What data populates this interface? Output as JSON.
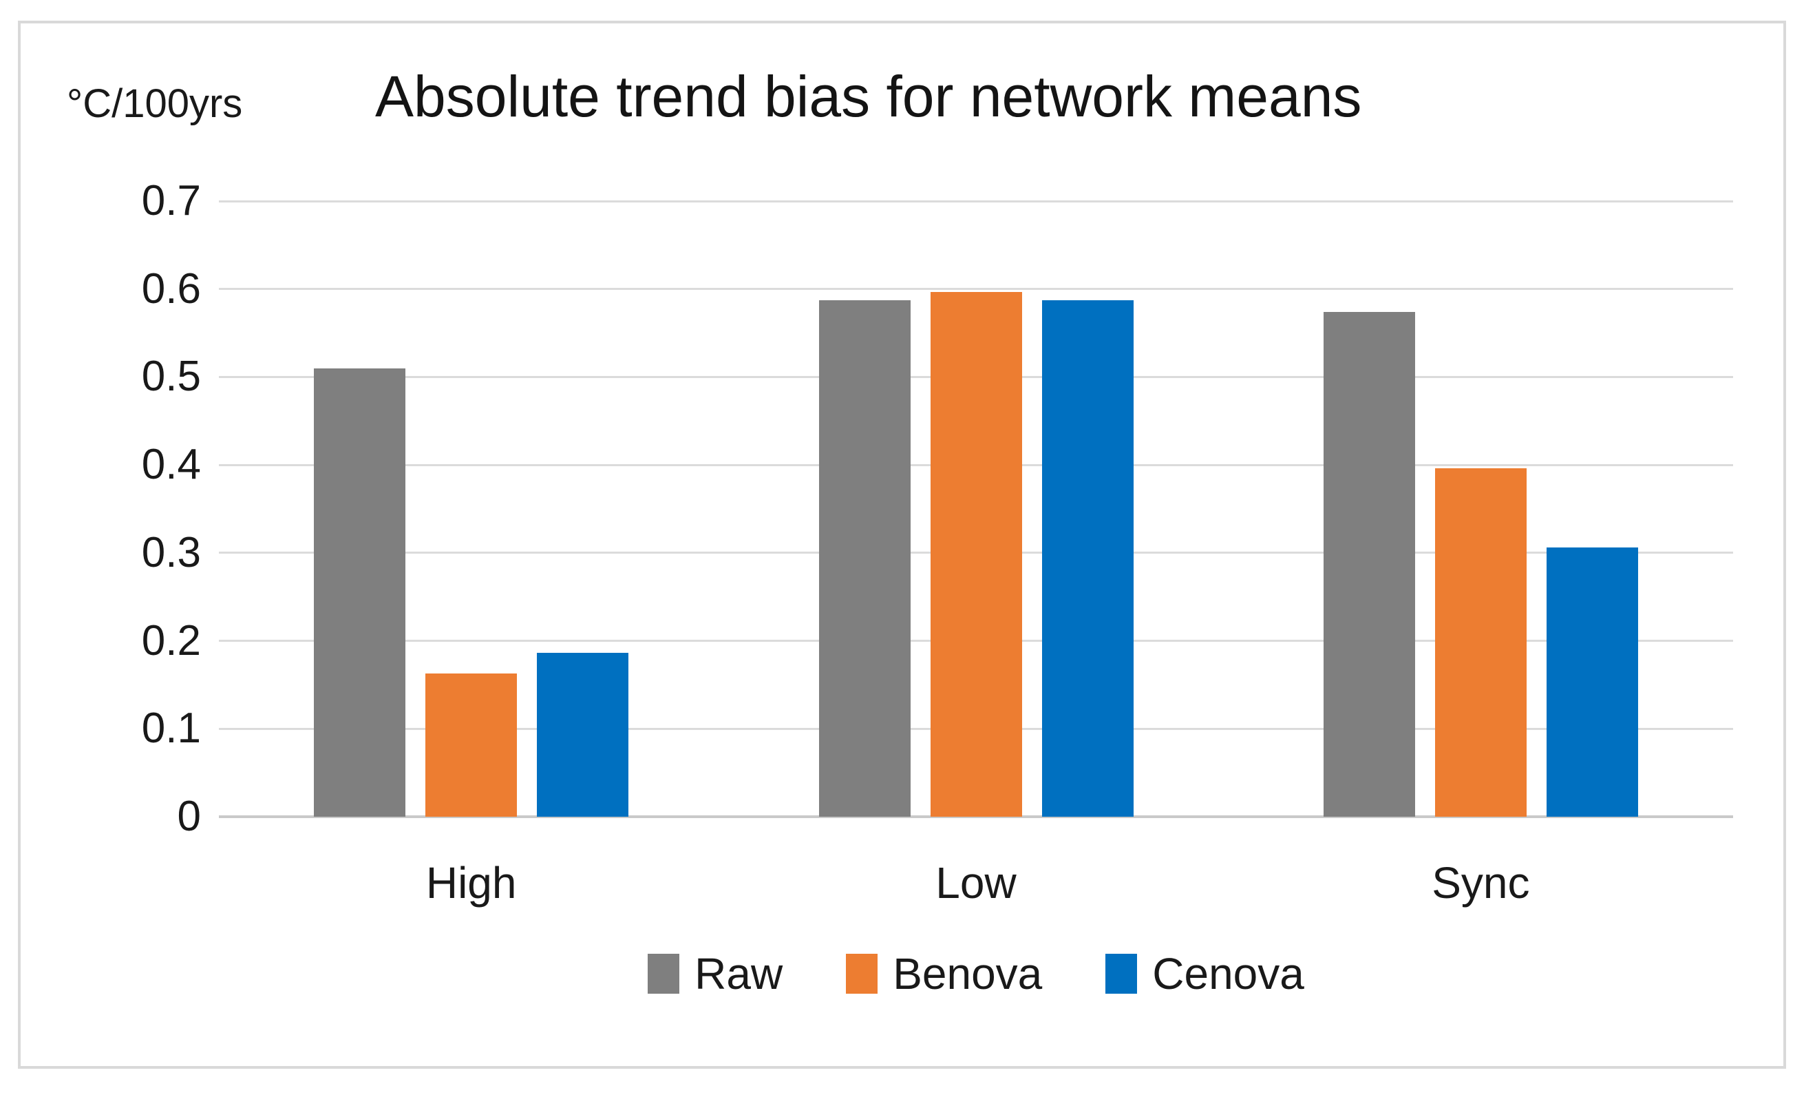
{
  "chart_data": {
    "type": "bar",
    "title": "Absolute trend bias for network means",
    "unit_label": "°C/100yrs",
    "categories": [
      "High",
      "Low",
      "Sync"
    ],
    "series": [
      {
        "name": "Raw",
        "color": "#7F7F7F",
        "values": [
          0.51,
          0.587,
          0.574
        ]
      },
      {
        "name": "Benova",
        "color": "#ED7D31",
        "values": [
          0.163,
          0.597,
          0.396
        ]
      },
      {
        "name": "Cenova",
        "color": "#0070C0",
        "values": [
          0.186,
          0.587,
          0.306
        ]
      }
    ],
    "ylim": [
      0,
      0.7
    ],
    "ytick_values": [
      0,
      0.1,
      0.2,
      0.3,
      0.4,
      0.5,
      0.6,
      0.7
    ],
    "ytick_labels": [
      "0",
      "0.1",
      "0.2",
      "0.3",
      "0.4",
      "0.5",
      "0.6",
      "0.7"
    ],
    "grid": true,
    "legend_position": "bottom",
    "xlabel": "",
    "ylabel": "",
    "colors": {
      "background": "#FFFFFF",
      "frame_border": "#D9D9D9",
      "gridline": "#DBDBDB",
      "axis_line": "#C9C9C9",
      "text": "#191919"
    }
  }
}
